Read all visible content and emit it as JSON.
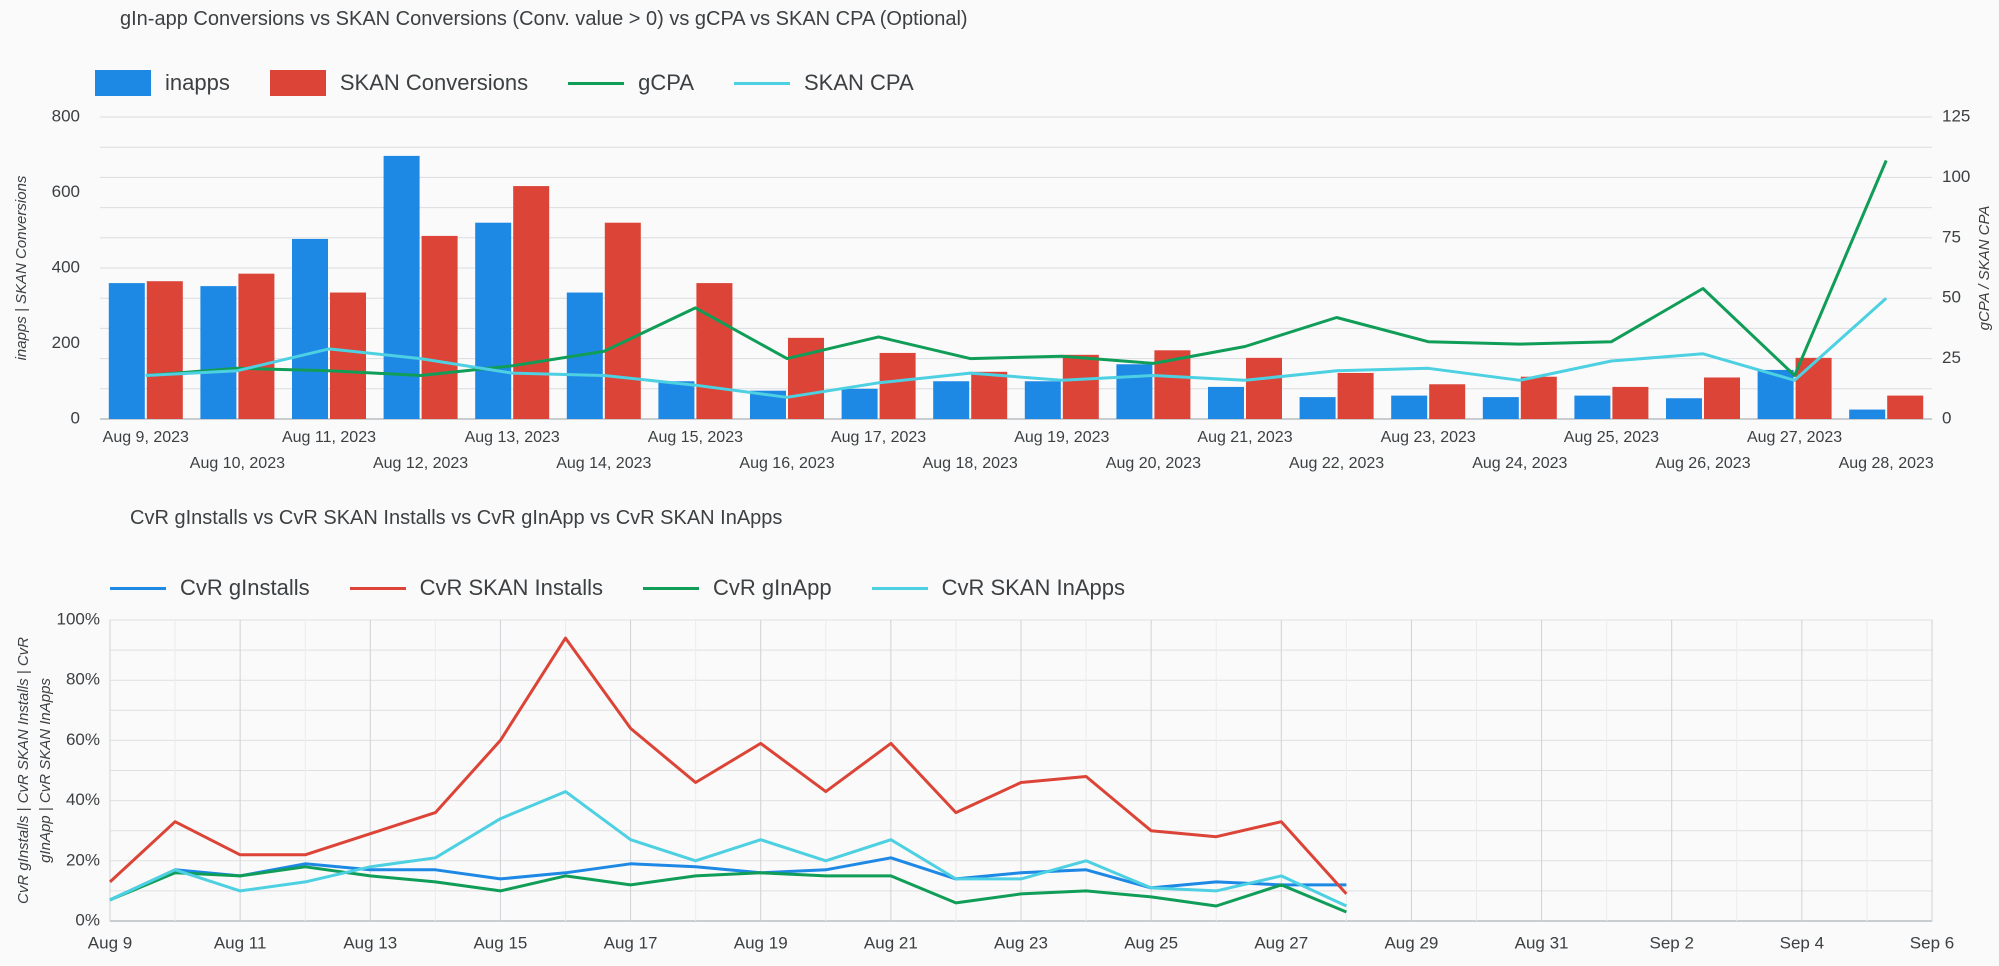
{
  "chart_data": [
    {
      "type": "bar",
      "title": "gIn-app Conversions vs SKAN Conversions (Conv. value > 0) vs gCPA vs SKAN CPA (Optional)",
      "ylabel": "inapps | SKAN Conversions",
      "y2label": "gCPA / SKAN CPA",
      "ylim": [
        0,
        800
      ],
      "y2lim": [
        0,
        125
      ],
      "yticks": [
        "800",
        "600",
        "400",
        "200",
        "0"
      ],
      "y2ticks": [
        "125",
        "100",
        "75",
        "50",
        "25",
        "0"
      ],
      "legend_position": "top-left",
      "grid": true,
      "categories": [
        "Aug 9, 2023",
        "Aug 10, 2023",
        "Aug 11, 2023",
        "Aug 12, 2023",
        "Aug 13, 2023",
        "Aug 14, 2023",
        "Aug 15, 2023",
        "Aug 16, 2023",
        "Aug 17, 2023",
        "Aug 18, 2023",
        "Aug 19, 2023",
        "Aug 20, 2023",
        "Aug 21, 2023",
        "Aug 22, 2023",
        "Aug 23, 2023",
        "Aug 24, 2023",
        "Aug 25, 2023",
        "Aug 26, 2023",
        "Aug 27, 2023",
        "Aug 28, 2023"
      ],
      "series": [
        {
          "name": "inapps",
          "kind": "bar",
          "axis": "left",
          "color": "#1e88e5",
          "values": [
            360,
            352,
            477,
            697,
            520,
            335,
            100,
            75,
            80,
            100,
            100,
            145,
            85,
            58,
            62,
            58,
            62,
            55,
            130,
            25
          ]
        },
        {
          "name": "SKAN Conversions",
          "kind": "bar",
          "axis": "left",
          "color": "#db4437",
          "values": [
            365,
            385,
            335,
            485,
            617,
            520,
            360,
            215,
            175,
            125,
            170,
            182,
            162,
            122,
            92,
            112,
            85,
            110,
            162,
            62
          ]
        },
        {
          "name": "gCPA",
          "kind": "line",
          "axis": "right",
          "color": "#109d58",
          "values": [
            18,
            21,
            20,
            18,
            22,
            28,
            46,
            25,
            34,
            25,
            26,
            23,
            30,
            42,
            32,
            31,
            32,
            54,
            18,
            107
          ]
        },
        {
          "name": "SKAN CPA",
          "kind": "line",
          "axis": "right",
          "color": "#4dd0e1",
          "values": [
            18,
            20,
            29,
            25,
            19,
            18,
            14,
            9,
            15,
            19,
            16,
            18,
            16,
            20,
            21,
            16,
            24,
            27,
            16,
            50
          ]
        }
      ]
    },
    {
      "type": "line",
      "title": "CvR gInstalls vs CvR SKAN Installs vs CvR gInApp vs CvR SKAN InApps",
      "ylabel": "CvR gInstalls | CvR SKAN Installs | CvR gInApp | CvR SKAN InApps",
      "ylim": [
        0,
        100
      ],
      "yticks": [
        "100%",
        "80%",
        "60%",
        "40%",
        "20%",
        "0%"
      ],
      "legend_position": "top-left",
      "grid": true,
      "x": [
        "Aug 9",
        "Aug 10",
        "Aug 11",
        "Aug 12",
        "Aug 13",
        "Aug 14",
        "Aug 15",
        "Aug 16",
        "Aug 17",
        "Aug 18",
        "Aug 19",
        "Aug 20",
        "Aug 21",
        "Aug 22",
        "Aug 23",
        "Aug 24",
        "Aug 25",
        "Aug 26",
        "Aug 27",
        "Aug 28"
      ],
      "xticks": [
        "Aug 9",
        "Aug 11",
        "Aug 13",
        "Aug 15",
        "Aug 17",
        "Aug 19",
        "Aug 21",
        "Aug 23",
        "Aug 25",
        "Aug 27",
        "Aug 29",
        "Aug 31",
        "Sep 2",
        "Sep 4",
        "Sep 6"
      ],
      "series": [
        {
          "name": "CvR gInstalls",
          "color": "#1e88e5",
          "values": [
            7,
            17,
            15,
            19,
            17,
            17,
            14,
            16,
            19,
            18,
            16,
            17,
            21,
            14,
            16,
            17,
            11,
            13,
            12,
            12
          ]
        },
        {
          "name": "CvR SKAN Installs",
          "color": "#db4437",
          "values": [
            13,
            33,
            22,
            22,
            29,
            36,
            60,
            94,
            64,
            46,
            59,
            43,
            59,
            36,
            46,
            48,
            30,
            28,
            33,
            9
          ]
        },
        {
          "name": "CvR gInApp",
          "color": "#109d58",
          "values": [
            7,
            16,
            15,
            18,
            15,
            13,
            10,
            15,
            12,
            15,
            16,
            15,
            15,
            6,
            9,
            10,
            8,
            5,
            12,
            3
          ]
        },
        {
          "name": "CvR SKAN InApps",
          "color": "#4dd0e1",
          "values": [
            7,
            17,
            10,
            13,
            18,
            21,
            34,
            43,
            27,
            20,
            27,
            20,
            27,
            14,
            14,
            20,
            11,
            10,
            15,
            5
          ]
        }
      ]
    }
  ]
}
